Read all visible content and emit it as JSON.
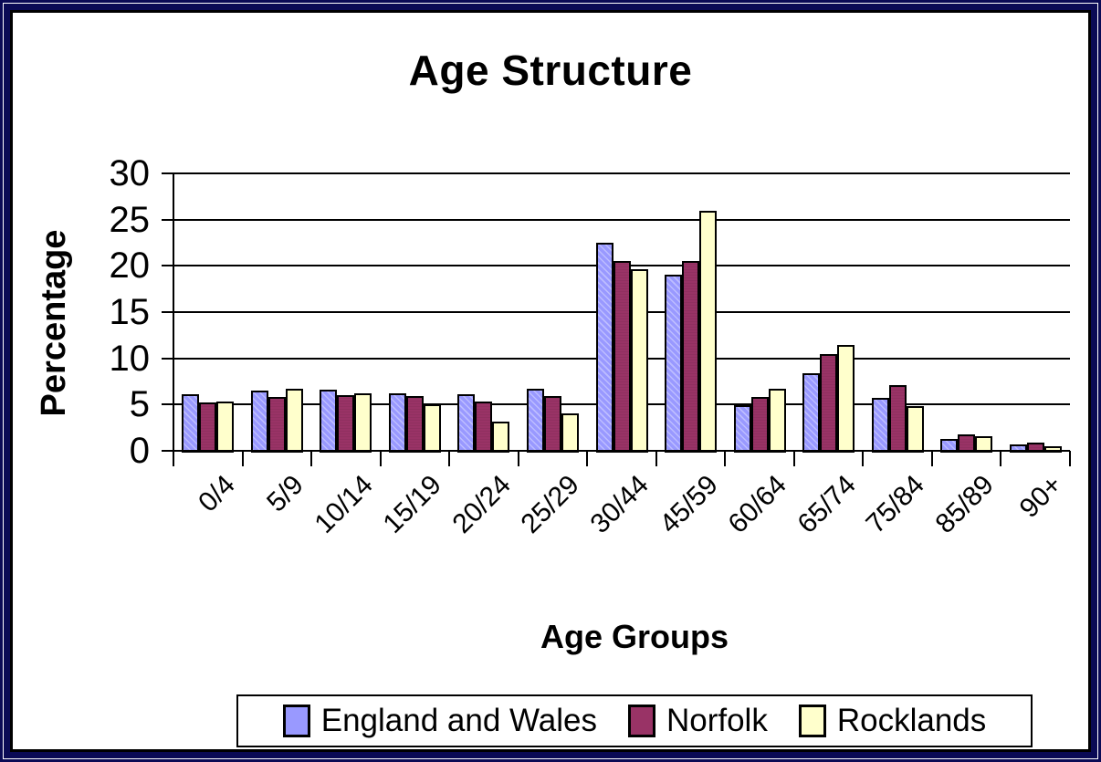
{
  "chart_data": {
    "type": "bar",
    "title": "Age Structure",
    "xlabel": "Age Groups",
    "ylabel": "Percentage",
    "ylim": [
      0,
      30
    ],
    "yticks": [
      0,
      5,
      10,
      15,
      20,
      25,
      30
    ],
    "grid": true,
    "legend_position": "bottom",
    "categories": [
      "0/4",
      "5/9",
      "10/14",
      "15/19",
      "20/24",
      "25/29",
      "30/44",
      "45/59",
      "60/64",
      "65/74",
      "75/84",
      "85/89",
      "90+"
    ],
    "series": [
      {
        "name": "England and Wales",
        "color": "#9999FF",
        "values": [
          6.1,
          6.5,
          6.6,
          6.2,
          6.1,
          6.7,
          22.5,
          19.0,
          4.9,
          8.4,
          5.7,
          1.3,
          0.7
        ]
      },
      {
        "name": "Norfolk",
        "color": "#993366",
        "values": [
          5.2,
          5.8,
          6.0,
          5.9,
          5.3,
          5.9,
          20.5,
          20.5,
          5.8,
          10.5,
          7.1,
          1.8,
          0.9
        ]
      },
      {
        "name": "Rocklands",
        "color": "#FFFFCC",
        "values": [
          5.3,
          6.7,
          6.2,
          5.0,
          3.2,
          4.0,
          19.6,
          26.0,
          6.7,
          11.4,
          4.8,
          1.6,
          0.5
        ]
      }
    ],
    "frame_colors": {
      "outer_border": "#0a0a55",
      "plot_background": "#ffffff",
      "axis": "#000000"
    }
  }
}
